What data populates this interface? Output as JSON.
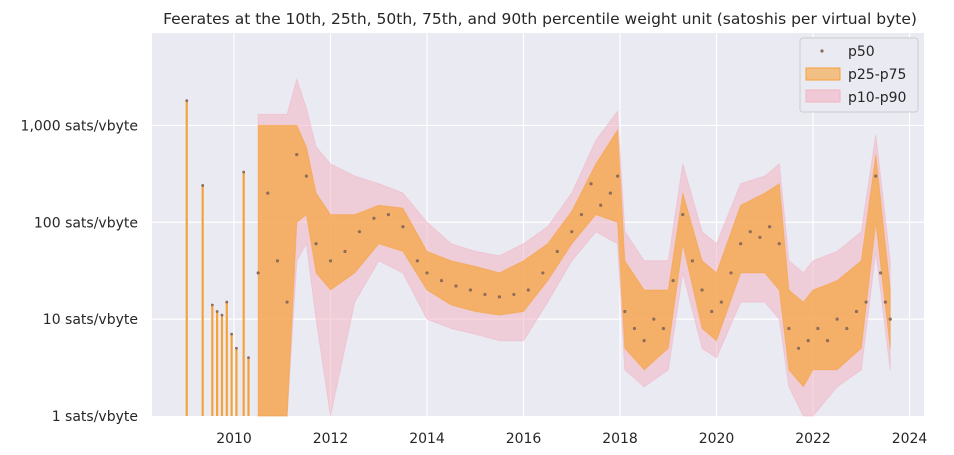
{
  "chart_data": {
    "type": "area",
    "title": "Feerates at the 10th, 25th, 50th, 75th, and 90th percentile weight unit (satoshis per virtual byte)",
    "xlabel": "",
    "ylabel": "",
    "x_scale": "time",
    "y_scale": "log",
    "xlim": [
      2008.3,
      2024.3
    ],
    "ylim": [
      1,
      9000
    ],
    "x_ticks": [
      "2010",
      "2012",
      "2014",
      "2016",
      "2018",
      "2020",
      "2022",
      "2024"
    ],
    "y_ticks": [
      "1,000 sats/vbyte",
      "100 sats/vbyte",
      "10 sats/vbyte",
      "1 sats/vbyte"
    ],
    "grid": true,
    "legend_position": "top-right",
    "legend": [
      "p50",
      "p25-p75",
      "p10-p90"
    ],
    "colors": {
      "p50": "#8c6d5a",
      "p25_p75": "#f6a23a",
      "p10_p90": "#f2b4c3",
      "background": "#eaeaf2",
      "grid": "#ffffff"
    },
    "series": [
      {
        "name": "p50",
        "x": [
          2010.5,
          2010.7,
          2010.9,
          2011.1,
          2011.3,
          2011.5,
          2011.7,
          2012.0,
          2012.3,
          2012.6,
          2012.9,
          2013.2,
          2013.5,
          2013.8,
          2014.0,
          2014.3,
          2014.6,
          2014.9,
          2015.2,
          2015.5,
          2015.8,
          2016.1,
          2016.4,
          2016.7,
          2017.0,
          2017.2,
          2017.4,
          2017.6,
          2017.8,
          2017.95,
          2018.1,
          2018.3,
          2018.5,
          2018.7,
          2018.9,
          2019.1,
          2019.3,
          2019.5,
          2019.7,
          2019.9,
          2020.1,
          2020.3,
          2020.5,
          2020.7,
          2020.9,
          2021.1,
          2021.3,
          2021.5,
          2021.7,
          2021.9,
          2022.1,
          2022.3,
          2022.5,
          2022.7,
          2022.9,
          2023.1,
          2023.3,
          2023.4,
          2023.5,
          2023.6
        ],
        "values": [
          30,
          200,
          40,
          15,
          500,
          300,
          60,
          40,
          50,
          80,
          110,
          120,
          90,
          40,
          30,
          25,
          22,
          20,
          18,
          17,
          18,
          20,
          30,
          50,
          80,
          120,
          250,
          150,
          200,
          300,
          12,
          8,
          6,
          10,
          8,
          25,
          120,
          40,
          20,
          12,
          15,
          30,
          60,
          80,
          70,
          90,
          60,
          8,
          5,
          6,
          8,
          6,
          10,
          8,
          12,
          15,
          300,
          30,
          15,
          10
        ]
      },
      {
        "name": "p25-p75",
        "x": [
          2010.5,
          2010.9,
          2011.1,
          2011.3,
          2011.5,
          2011.7,
          2012.0,
          2012.5,
          2013.0,
          2013.5,
          2014.0,
          2014.5,
          2015.0,
          2015.5,
          2016.0,
          2016.5,
          2017.0,
          2017.5,
          2017.95,
          2018.1,
          2018.5,
          2019.0,
          2019.3,
          2019.7,
          2020.0,
          2020.5,
          2021.0,
          2021.3,
          2021.5,
          2021.8,
          2022.0,
          2022.5,
          2023.0,
          2023.3,
          2023.6
        ],
        "lower": [
          1,
          1,
          1,
          100,
          120,
          30,
          20,
          30,
          60,
          50,
          20,
          14,
          12,
          11,
          12,
          25,
          60,
          120,
          100,
          5,
          3,
          5,
          60,
          8,
          6,
          30,
          30,
          20,
          3,
          2,
          3,
          3,
          5,
          100,
          5
        ],
        "upper": [
          1000,
          1000,
          1000,
          1000,
          600,
          200,
          120,
          120,
          150,
          140,
          50,
          40,
          35,
          30,
          40,
          60,
          130,
          400,
          900,
          40,
          20,
          20,
          200,
          40,
          30,
          150,
          200,
          250,
          20,
          15,
          20,
          25,
          40,
          500,
          20
        ]
      },
      {
        "name": "p10-p90",
        "x": [
          2010.5,
          2010.9,
          2011.1,
          2011.3,
          2011.5,
          2011.7,
          2012.0,
          2012.5,
          2013.0,
          2013.5,
          2014.0,
          2014.5,
          2015.0,
          2015.5,
          2016.0,
          2016.5,
          2017.0,
          2017.5,
          2017.95,
          2018.1,
          2018.5,
          2019.0,
          2019.3,
          2019.7,
          2020.0,
          2020.5,
          2021.0,
          2021.3,
          2021.5,
          2021.8,
          2022.0,
          2022.5,
          2023.0,
          2023.3,
          2023.6
        ],
        "lower": [
          1,
          1,
          1,
          40,
          60,
          10,
          1,
          15,
          40,
          30,
          10,
          8,
          7,
          6,
          6,
          15,
          40,
          80,
          60,
          3,
          2,
          3,
          30,
          5,
          4,
          15,
          15,
          10,
          2,
          1,
          1,
          2,
          3,
          50,
          3
        ],
        "upper": [
          1300,
          1300,
          1300,
          3000,
          1500,
          600,
          400,
          300,
          250,
          200,
          100,
          60,
          50,
          45,
          60,
          90,
          200,
          700,
          1400,
          80,
          40,
          40,
          400,
          80,
          60,
          250,
          300,
          400,
          40,
          30,
          40,
          50,
          80,
          800,
          40
        ]
      }
    ],
    "early_spikes": {
      "x": [
        2009.02,
        2009.35,
        2009.55,
        2009.65,
        2009.75,
        2009.85,
        2009.95,
        2010.05,
        2010.2,
        2010.3
      ],
      "values": [
        1800,
        240,
        14,
        12,
        11,
        15,
        7,
        5,
        330,
        4
      ]
    }
  }
}
